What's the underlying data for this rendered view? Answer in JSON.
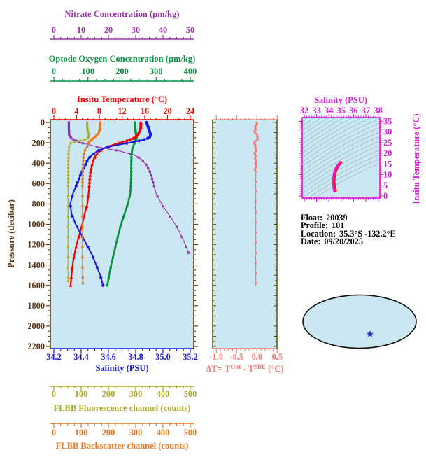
{
  "figure": {
    "background": "#FFFFFF",
    "panel_background": "#CBE8F2"
  },
  "axes": {
    "nitrate": {
      "title": "Nitrate Concentration (µm/kg)",
      "color": "#9932A8",
      "tick_labels": [
        "0",
        "10",
        "20",
        "30",
        "40",
        "50"
      ],
      "range": [
        0,
        50
      ]
    },
    "oxygen": {
      "title": "Optode Oxygen Concentration (µm/kg)",
      "color": "#089140",
      "tick_labels": [
        "0",
        "100",
        "200",
        "300",
        "400"
      ],
      "range": [
        0,
        400
      ]
    },
    "temperature": {
      "title": "Insitu Temperature (°C)",
      "color": "#F20000",
      "tick_labels": [
        "0",
        "4",
        "8",
        "12",
        "16",
        "20",
        "24"
      ],
      "range": [
        0,
        24
      ]
    },
    "pressure": {
      "title": "Pressure (decibar)",
      "color": "#5C3A18",
      "tick_labels": [
        "0",
        "200",
        "400",
        "600",
        "800",
        "1000",
        "1200",
        "1400",
        "1600",
        "1800",
        "2000",
        "2200"
      ],
      "range": [
        0,
        2200
      ]
    },
    "salinity": {
      "title": "Salinity (PSU)",
      "color": "#1818E0",
      "tick_labels": [
        "34.2",
        "34.4",
        "34.6",
        "34.8",
        "35.0",
        "35.2"
      ],
      "range": [
        34.2,
        35.2
      ]
    },
    "fluorescence": {
      "title": "FLBB Fluorescence channel (counts)",
      "color": "#A8A828",
      "tick_labels": [
        "0",
        "100",
        "200",
        "300",
        "400",
        "500"
      ],
      "range": [
        0,
        500
      ]
    },
    "backscatter": {
      "title": "FLBB Backscatter channel (counts)",
      "color": "#E8761C",
      "tick_labels": [
        "0",
        "100",
        "200",
        "300",
        "400",
        "500"
      ],
      "range": [
        0,
        500
      ]
    },
    "delta_t": {
      "title_parts": {
        "pre": "ΔT= T",
        "sup1": "Opt",
        "mid": " - T",
        "sup2": "SBE",
        "post": " (°C)"
      },
      "color": "#F47878",
      "side_color": "#5E5E08",
      "tick_labels": [
        "-1.0",
        "-0.5",
        "0.0",
        "0.5"
      ],
      "tick_values": [
        -1.0,
        -0.5,
        0.0,
        0.5
      ],
      "range": [
        -1.09,
        0.5
      ]
    },
    "ts_salinity": {
      "title": "Salinity (PSU)",
      "color": "#D818D8",
      "tick_labels": [
        "32",
        "33",
        "34",
        "35",
        "36",
        "37",
        "38"
      ],
      "range": [
        32,
        38
      ]
    },
    "ts_temperature": {
      "title": "Insitu Temperature (°C)",
      "color": "#D818D8",
      "tick_labels": [
        "0",
        "5",
        "10",
        "15",
        "20",
        "25",
        "30",
        "35"
      ],
      "range": [
        0,
        35
      ]
    }
  },
  "info": {
    "lines": [
      {
        "label": "Float:",
        "value": "20039"
      },
      {
        "label": "Profile:",
        "value": "101"
      },
      {
        "label": "Location:",
        "value": "35.3°S -132.2°E"
      },
      {
        "label": "Date:",
        "value": "09/20/2025"
      }
    ]
  },
  "map": {
    "ocean_color": "#CBE8F2",
    "land_color": "#F6C8C6",
    "outline_color": "#101010",
    "star_color": "#2020CC"
  },
  "chart_data": [
    {
      "id": "profile-panel",
      "type": "line",
      "ylabel": "Pressure (decibar)",
      "ylim": [
        0,
        2200
      ],
      "y_inverted": true,
      "series": [
        {
          "name": "Nitrate Concentration",
          "units": "µm/kg",
          "xlim": [
            0,
            50
          ],
          "color": "#9932A8",
          "marker": "square",
          "line_width": 1.1,
          "points": [
            [
              0,
              5.5
            ],
            [
              60,
              5.5
            ],
            [
              120,
              5.6
            ],
            [
              160,
              6.5
            ],
            [
              200,
              10
            ],
            [
              240,
              16
            ],
            [
              280,
              24
            ],
            [
              320,
              29.5
            ],
            [
              360,
              32
            ],
            [
              420,
              34
            ],
            [
              500,
              35.5
            ],
            [
              600,
              36.5
            ],
            [
              700,
              37.5
            ],
            [
              800,
              39.5
            ],
            [
              900,
              42
            ],
            [
              1000,
              44.5
            ],
            [
              1100,
              46.5
            ],
            [
              1200,
              48.2
            ],
            [
              1280,
              49.4
            ]
          ]
        },
        {
          "name": "Optode Oxygen Concentration",
          "units": "µm/kg",
          "xlim": [
            0,
            400
          ],
          "color": "#089140",
          "marker": "square",
          "line_width": 2.6,
          "points": [
            [
              0,
              238
            ],
            [
              60,
              239
            ],
            [
              100,
              240
            ],
            [
              150,
              243
            ],
            [
              200,
              237
            ],
            [
              250,
              231
            ],
            [
              300,
              228
            ],
            [
              400,
              227
            ],
            [
              500,
              227
            ],
            [
              600,
              226
            ],
            [
              700,
              224
            ],
            [
              800,
              217
            ],
            [
              900,
              207
            ],
            [
              1000,
              197
            ],
            [
              1100,
              189
            ],
            [
              1200,
              182
            ],
            [
              1300,
              175
            ],
            [
              1400,
              168
            ],
            [
              1500,
              162
            ],
            [
              1600,
              157
            ]
          ]
        },
        {
          "name": "Insitu Temperature",
          "units": "°C",
          "xlim": [
            0,
            24
          ],
          "color": "#F20000",
          "marker": "triangle",
          "line_width": 2.2,
          "points": [
            [
              0,
              15.3
            ],
            [
              40,
              15.3
            ],
            [
              80,
              15.1
            ],
            [
              120,
              14.7
            ],
            [
              150,
              14.2
            ],
            [
              180,
              12.8
            ],
            [
              200,
              11.6
            ],
            [
              220,
              10.4
            ],
            [
              240,
              9.4
            ],
            [
              260,
              8.6
            ],
            [
              290,
              7.9
            ],
            [
              320,
              7.4
            ],
            [
              360,
              7.0
            ],
            [
              420,
              6.7
            ],
            [
              500,
              6.4
            ],
            [
              600,
              6.25
            ],
            [
              700,
              6.1
            ],
            [
              800,
              5.9
            ],
            [
              900,
              5.4
            ],
            [
              1000,
              5.0
            ],
            [
              1100,
              4.5
            ],
            [
              1200,
              4.0
            ],
            [
              1300,
              3.6
            ],
            [
              1400,
              3.3
            ],
            [
              1500,
              3.1
            ],
            [
              1600,
              2.95
            ]
          ]
        },
        {
          "name": "Salinity",
          "units": "PSU",
          "xlim": [
            34.2,
            35.2
          ],
          "color": "#1818E0",
          "marker": "circle",
          "line_width": 2.0,
          "points": [
            [
              0,
              34.88
            ],
            [
              40,
              34.89
            ],
            [
              80,
              34.9
            ],
            [
              120,
              34.91
            ],
            [
              150,
              34.9
            ],
            [
              170,
              34.86
            ],
            [
              190,
              34.79
            ],
            [
              210,
              34.71
            ],
            [
              230,
              34.63
            ],
            [
              250,
              34.57
            ],
            [
              280,
              34.52
            ],
            [
              320,
              34.48
            ],
            [
              360,
              34.45
            ],
            [
              420,
              34.43
            ],
            [
              500,
              34.4
            ],
            [
              600,
              34.37
            ],
            [
              700,
              34.34
            ],
            [
              800,
              34.32
            ],
            [
              900,
              34.33
            ],
            [
              1000,
              34.36
            ],
            [
              1100,
              34.4
            ],
            [
              1200,
              34.44
            ],
            [
              1300,
              34.48
            ],
            [
              1400,
              34.51
            ],
            [
              1500,
              34.54
            ],
            [
              1600,
              34.56
            ]
          ]
        },
        {
          "name": "FLBB Fluorescence channel",
          "units": "counts",
          "xlim": [
            0,
            500
          ],
          "color": "#B2B232",
          "marker": "square",
          "line_width": 1.3,
          "points": [
            [
              0,
              122
            ],
            [
              50,
              123
            ],
            [
              90,
              125
            ],
            [
              130,
              129
            ],
            [
              160,
              124
            ],
            [
              185,
              90
            ],
            [
              200,
              62
            ],
            [
              230,
              56
            ],
            [
              300,
              54
            ],
            [
              400,
              53
            ],
            [
              500,
              53
            ],
            [
              700,
              52
            ],
            [
              900,
              52
            ],
            [
              1100,
              52
            ],
            [
              1300,
              52
            ],
            [
              1450,
              52
            ],
            [
              1560,
              53
            ]
          ]
        },
        {
          "name": "FLBB Backscatter channel",
          "units": "counts",
          "xlim": [
            0,
            500
          ],
          "color": "#E8761C",
          "marker": "square",
          "line_width": 1.3,
          "points": [
            [
              0,
              170
            ],
            [
              60,
              169
            ],
            [
              100,
              165
            ],
            [
              140,
              152
            ],
            [
              170,
              138
            ],
            [
              200,
              126
            ],
            [
              240,
              122
            ],
            [
              280,
              112
            ],
            [
              350,
              108
            ],
            [
              450,
              106
            ],
            [
              600,
              105
            ],
            [
              800,
              105
            ],
            [
              1000,
              105
            ],
            [
              1200,
              105
            ],
            [
              1400,
              105
            ],
            [
              1580,
              106
            ]
          ]
        }
      ]
    },
    {
      "id": "delta-t-panel",
      "type": "line",
      "xlabel": "ΔT= TOpt - TSBE (°C)",
      "xlim": [
        -1.0,
        0.5
      ],
      "ylim": [
        0,
        2200
      ],
      "color": "#F47878",
      "marker": "square",
      "points": [
        [
          0,
          -0.02
        ],
        [
          100,
          -0.04
        ],
        [
          150,
          0.02
        ],
        [
          200,
          -0.05
        ],
        [
          250,
          -0.03
        ],
        [
          300,
          -0.05
        ],
        [
          350,
          -0.02
        ],
        [
          400,
          -0.04
        ],
        [
          450,
          -0.03
        ],
        [
          500,
          -0.03
        ],
        [
          600,
          -0.03
        ],
        [
          700,
          -0.03
        ],
        [
          800,
          -0.03
        ],
        [
          900,
          -0.03
        ],
        [
          1000,
          -0.03
        ],
        [
          1100,
          -0.03
        ],
        [
          1200,
          -0.03
        ],
        [
          1300,
          -0.03
        ],
        [
          1400,
          -0.03
        ],
        [
          1500,
          -0.03
        ],
        [
          1600,
          -0.03
        ]
      ]
    },
    {
      "id": "ts-panel",
      "type": "line",
      "xlabel": "Salinity (PSU)",
      "ylabel": "Insitu Temperature (°C)",
      "xlim": [
        32,
        38
      ],
      "ylim": [
        0,
        35
      ],
      "color": "#F018B8",
      "points": [
        [
          34.45,
          2.2
        ],
        [
          34.4,
          3.5
        ],
        [
          34.36,
          5.0
        ],
        [
          34.34,
          6.5
        ],
        [
          34.35,
          8.0
        ],
        [
          34.39,
          9.5
        ],
        [
          34.45,
          11.0
        ],
        [
          34.53,
          12.4
        ],
        [
          34.63,
          13.5
        ],
        [
          34.73,
          14.4
        ],
        [
          34.82,
          15.0
        ],
        [
          34.88,
          15.4
        ]
      ]
    }
  ]
}
